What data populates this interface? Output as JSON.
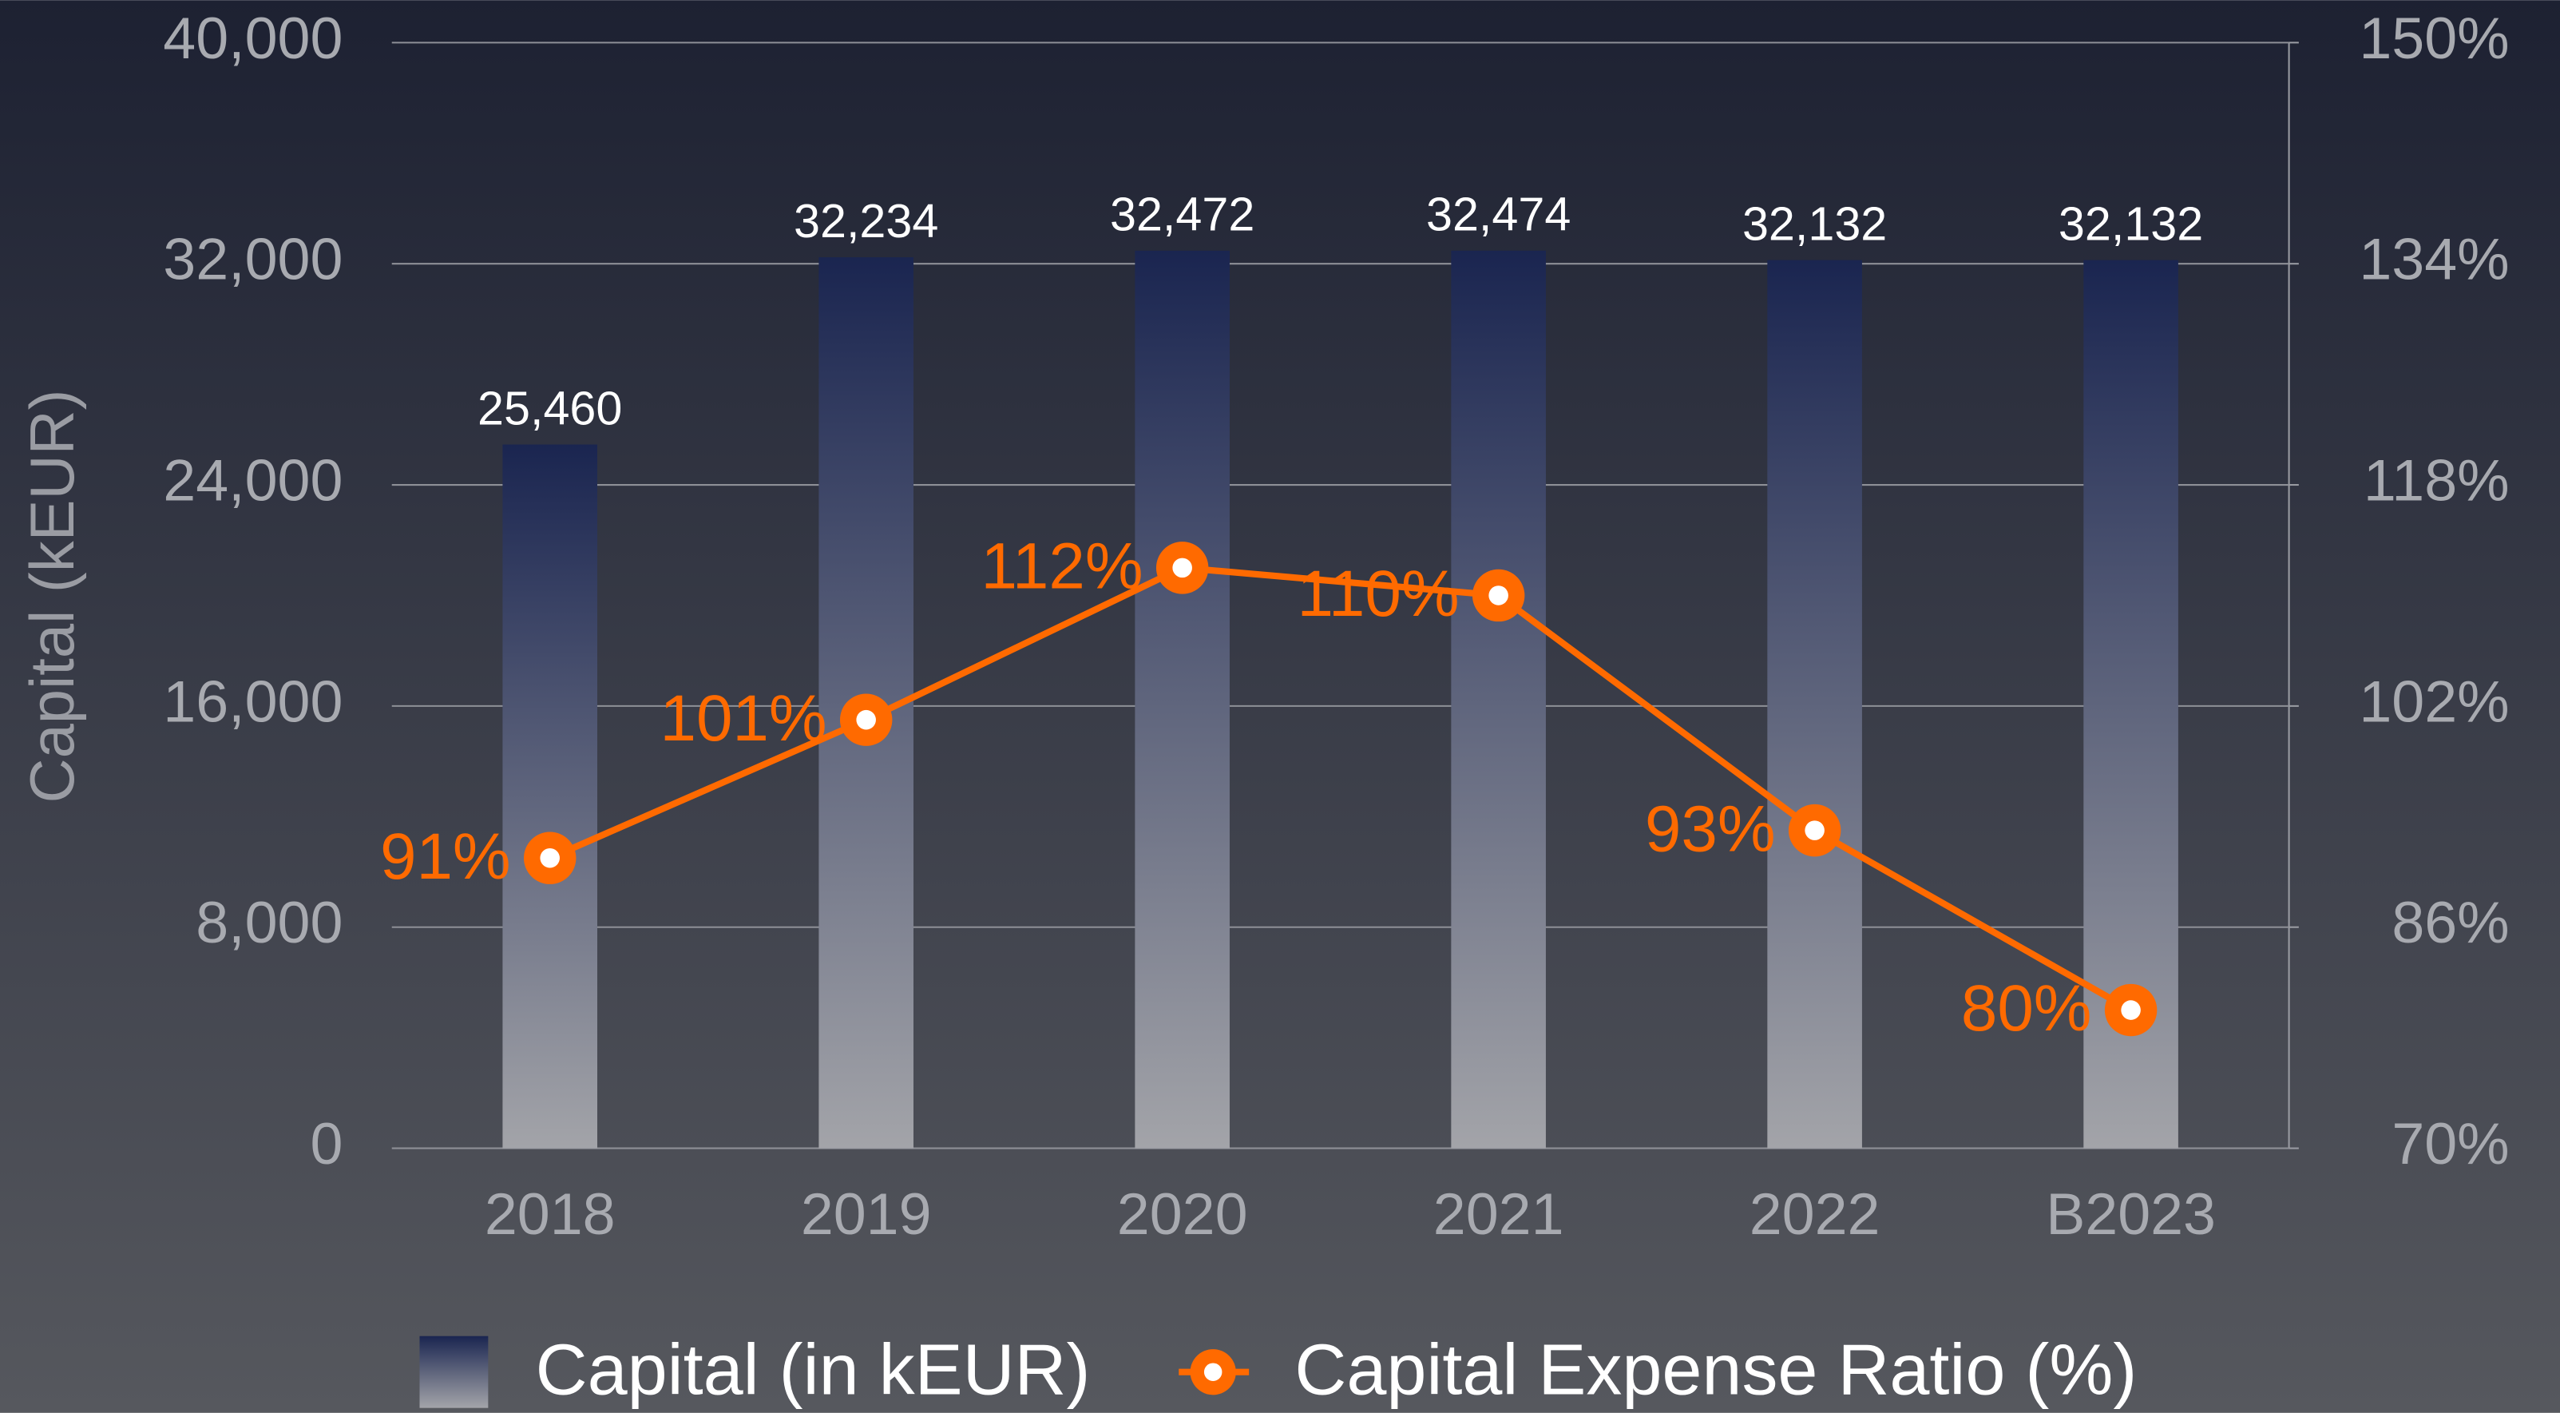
{
  "chart_data": {
    "type": "bar",
    "ylabel": "Capital (kEUR)",
    "categories": [
      "2018",
      "2019",
      "2020",
      "2021",
      "2022",
      "B2023"
    ],
    "series": [
      {
        "name": "Capital (in kEUR)",
        "type": "bar",
        "color": "#1a2550",
        "values": [
          25460,
          32234,
          32472,
          32474,
          32132,
          32132
        ],
        "value_labels": [
          "25,460",
          "32,234",
          "32,472",
          "32,474",
          "32,132",
          "32,132"
        ]
      },
      {
        "name": "Capital Expense Ratio (%)",
        "type": "line",
        "axis": "y2",
        "color": "#ff6a00",
        "values": [
          91,
          101,
          112,
          110,
          93,
          80
        ],
        "value_labels": [
          "91%",
          "101%",
          "112%",
          "110%",
          "93%",
          "80%"
        ]
      }
    ],
    "ylim": [
      0,
      40000
    ],
    "yticks": [
      0,
      {
        "value": 8000,
        "label": "8,000"
      },
      {
        "value": 16000,
        "label": "16,000"
      },
      {
        "value": 24000,
        "label": "24,000"
      },
      {
        "value": 32000,
        "label": "32,000"
      },
      {
        "value": 40000,
        "label": "40,000"
      }
    ],
    "y2lim": [
      70,
      150
    ],
    "y2ticks": [
      {
        "value": 70,
        "label": "70%"
      },
      {
        "value": 86,
        "label": "86%"
      },
      {
        "value": 102,
        "label": "102%"
      },
      {
        "value": 118,
        "label": "118%"
      },
      {
        "value": 134,
        "label": "134%"
      },
      {
        "value": 150,
        "label": "150%"
      }
    ],
    "grid": true,
    "legend": "bottom"
  }
}
